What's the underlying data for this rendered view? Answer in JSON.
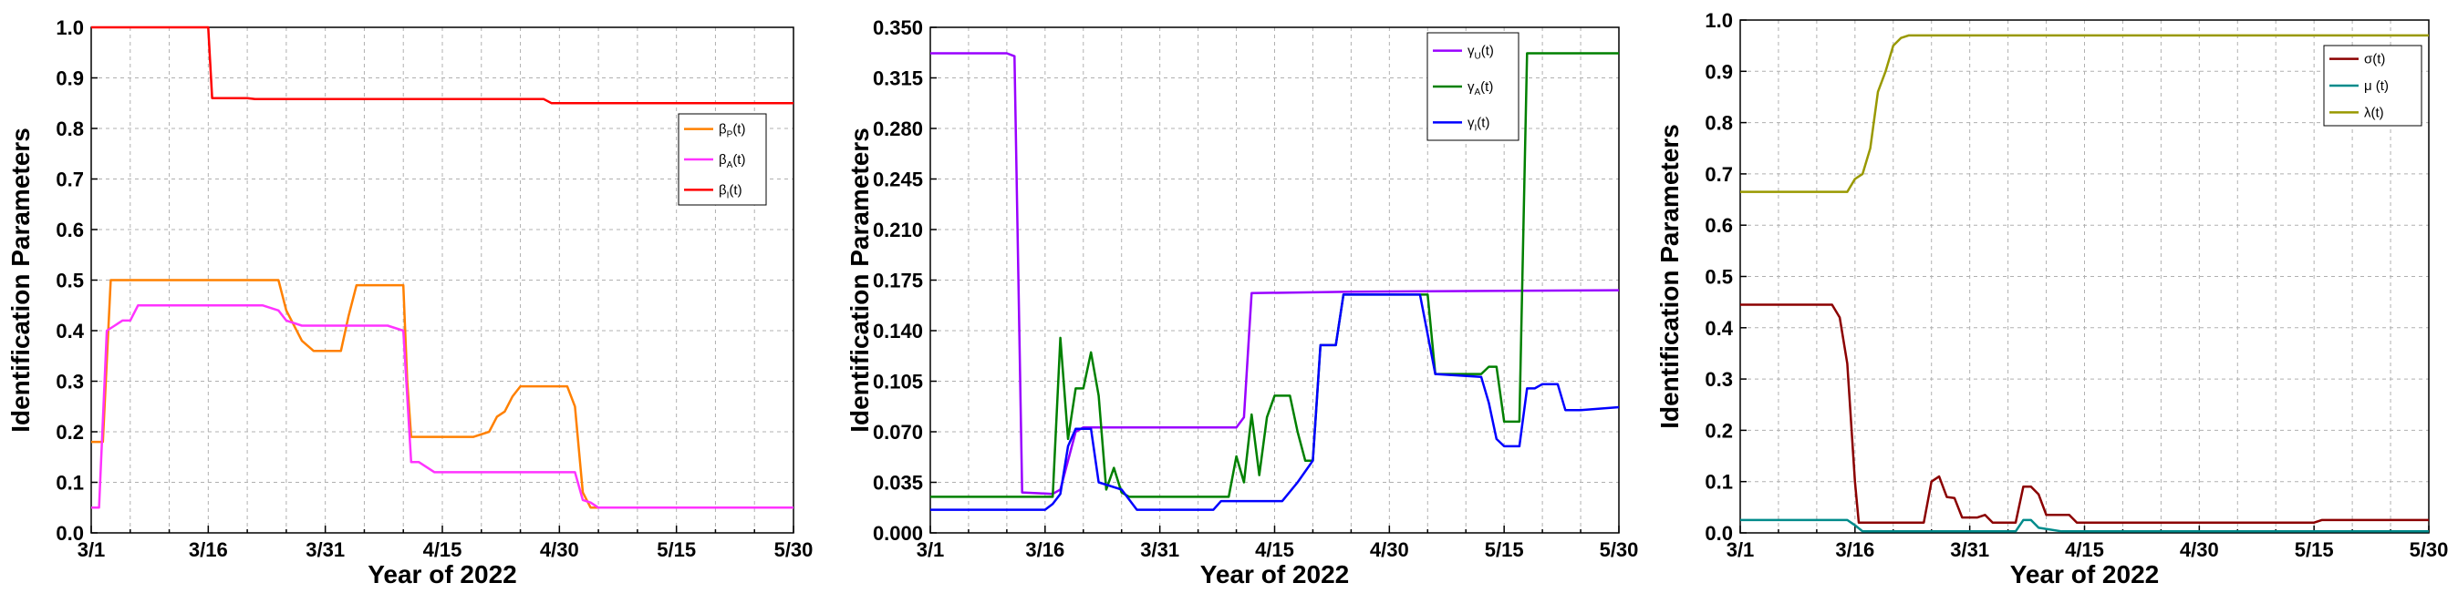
{
  "chart_data": [
    {
      "type": "line",
      "xlabel": "Year of 2022",
      "ylabel": "Identification Parameters",
      "x_unit": "day index from 3/1 (0 = 3/1, 90 = 5/30)",
      "xticks": [
        0,
        15,
        30,
        45,
        60,
        75,
        90
      ],
      "xtick_labels": [
        "3/1",
        "3/16",
        "3/31",
        "4/15",
        "4/30",
        "5/15",
        "5/30"
      ],
      "xlim": [
        0,
        90
      ],
      "ylim": [
        0.0,
        1.0
      ],
      "yticks": [
        0.0,
        0.1,
        0.2,
        0.3,
        0.4,
        0.5,
        0.6,
        0.7,
        0.8,
        0.9,
        1.0
      ],
      "ytick_labels": [
        "0.0",
        "0.1",
        "0.2",
        "0.3",
        "0.4",
        "0.5",
        "0.6",
        "0.7",
        "0.8",
        "0.9",
        "1.0"
      ],
      "grid": true,
      "legend_position": "upper-right",
      "series": [
        {
          "name": "β",
          "sub": "P",
          "suffix": "(t)",
          "color": "#ff8000",
          "points": [
            [
              0,
              0.18
            ],
            [
              1.5,
              0.18
            ],
            [
              2.5,
              0.5
            ],
            [
              24,
              0.5
            ],
            [
              25,
              0.44
            ],
            [
              27,
              0.38
            ],
            [
              28.5,
              0.36
            ],
            [
              32,
              0.36
            ],
            [
              33,
              0.43
            ],
            [
              34,
              0.49
            ],
            [
              40,
              0.49
            ],
            [
              40.5,
              0.3
            ],
            [
              41,
              0.19
            ],
            [
              49,
              0.19
            ],
            [
              51,
              0.2
            ],
            [
              52,
              0.23
            ],
            [
              53,
              0.24
            ],
            [
              54,
              0.27
            ],
            [
              55,
              0.29
            ],
            [
              61,
              0.29
            ],
            [
              62,
              0.25
            ],
            [
              63,
              0.08
            ],
            [
              64,
              0.05
            ],
            [
              90,
              0.05
            ]
          ]
        },
        {
          "name": "β",
          "sub": "A",
          "suffix": "(t)",
          "color": "#ff33ff",
          "points": [
            [
              0,
              0.05
            ],
            [
              1,
              0.05
            ],
            [
              2,
              0.4
            ],
            [
              3,
              0.41
            ],
            [
              4,
              0.42
            ],
            [
              5,
              0.42
            ],
            [
              6,
              0.45
            ],
            [
              22,
              0.45
            ],
            [
              24,
              0.44
            ],
            [
              25,
              0.42
            ],
            [
              27,
              0.41
            ],
            [
              38,
              0.41
            ],
            [
              40,
              0.4
            ],
            [
              41,
              0.14
            ],
            [
              42,
              0.14
            ],
            [
              44,
              0.12
            ],
            [
              62,
              0.12
            ],
            [
              63,
              0.065
            ],
            [
              64,
              0.06
            ],
            [
              65,
              0.05
            ],
            [
              90,
              0.05
            ]
          ]
        },
        {
          "name": "β",
          "sub": "I",
          "suffix": "(t)",
          "color": "#ff0000",
          "points": [
            [
              0,
              1.0
            ],
            [
              15,
              1.0
            ],
            [
              15.5,
              0.86
            ],
            [
              20,
              0.86
            ],
            [
              21,
              0.858
            ],
            [
              58,
              0.858
            ],
            [
              59,
              0.85
            ],
            [
              90,
              0.85
            ]
          ]
        }
      ]
    },
    {
      "type": "line",
      "xlabel": "Year of 2022",
      "ylabel": "Identification Parameters",
      "x_unit": "day index from 3/1 (0 = 3/1, 90 = 5/30)",
      "xticks": [
        0,
        15,
        30,
        45,
        60,
        75,
        90
      ],
      "xtick_labels": [
        "3/1",
        "3/16",
        "3/31",
        "4/15",
        "4/30",
        "5/15",
        "5/30"
      ],
      "xlim": [
        0,
        90
      ],
      "ylim": [
        0.0,
        0.35
      ],
      "yticks": [
        0.0,
        0.035,
        0.07,
        0.105,
        0.14,
        0.175,
        0.21,
        0.245,
        0.28,
        0.315,
        0.35
      ],
      "ytick_labels": [
        "0.000",
        "0.035",
        "0.070",
        "0.105",
        "0.140",
        "0.175",
        "0.210",
        "0.245",
        "0.280",
        "0.315",
        "0.350"
      ],
      "grid": true,
      "legend_position": "upper-right",
      "series": [
        {
          "name": "γ",
          "sub": "U",
          "suffix": "(t)",
          "color": "#9900ff",
          "points": [
            [
              0,
              0.332
            ],
            [
              10,
              0.332
            ],
            [
              11,
              0.33
            ],
            [
              12,
              0.028
            ],
            [
              16,
              0.027
            ],
            [
              17,
              0.03
            ],
            [
              18,
              0.05
            ],
            [
              19,
              0.07
            ],
            [
              20,
              0.073
            ],
            [
              40,
              0.073
            ],
            [
              41,
              0.08
            ],
            [
              42,
              0.166
            ],
            [
              55,
              0.167
            ],
            [
              90,
              0.168
            ]
          ]
        },
        {
          "name": "γ",
          "sub": "A",
          "suffix": "(t)",
          "color": "#008000",
          "points": [
            [
              0,
              0.025
            ],
            [
              16,
              0.025
            ],
            [
              17,
              0.135
            ],
            [
              18,
              0.065
            ],
            [
              19,
              0.1
            ],
            [
              20,
              0.1
            ],
            [
              21,
              0.125
            ],
            [
              22,
              0.095
            ],
            [
              23,
              0.03
            ],
            [
              24,
              0.045
            ],
            [
              25,
              0.028
            ],
            [
              26,
              0.025
            ],
            [
              39,
              0.025
            ],
            [
              40,
              0.053
            ],
            [
              41,
              0.035
            ],
            [
              42,
              0.082
            ],
            [
              43,
              0.04
            ],
            [
              44,
              0.08
            ],
            [
              45,
              0.095
            ],
            [
              47,
              0.095
            ],
            [
              48,
              0.07
            ],
            [
              49,
              0.05
            ],
            [
              50,
              0.05
            ],
            [
              51,
              0.13
            ],
            [
              53,
              0.13
            ],
            [
              54,
              0.165
            ],
            [
              65,
              0.165
            ],
            [
              66,
              0.11
            ],
            [
              72,
              0.11
            ],
            [
              73,
              0.115
            ],
            [
              74,
              0.115
            ],
            [
              75,
              0.077
            ],
            [
              77,
              0.077
            ],
            [
              78,
              0.332
            ],
            [
              90,
              0.332
            ]
          ]
        },
        {
          "name": "γ",
          "sub": "I",
          "suffix": "(t)",
          "color": "#0000ff",
          "points": [
            [
              0,
              0.016
            ],
            [
              15,
              0.016
            ],
            [
              16,
              0.02
            ],
            [
              17,
              0.027
            ],
            [
              18,
              0.06
            ],
            [
              19,
              0.072
            ],
            [
              21,
              0.072
            ],
            [
              22,
              0.035
            ],
            [
              25,
              0.03
            ],
            [
              27,
              0.016
            ],
            [
              37,
              0.016
            ],
            [
              38,
              0.022
            ],
            [
              46,
              0.022
            ],
            [
              48,
              0.035
            ],
            [
              50,
              0.05
            ],
            [
              51,
              0.13
            ],
            [
              53,
              0.13
            ],
            [
              54,
              0.165
            ],
            [
              59,
              0.165
            ],
            [
              60,
              0.165
            ],
            [
              64,
              0.165
            ],
            [
              66,
              0.11
            ],
            [
              72,
              0.108
            ],
            [
              73,
              0.09
            ],
            [
              74,
              0.065
            ],
            [
              75,
              0.06
            ],
            [
              77,
              0.06
            ],
            [
              78,
              0.1
            ],
            [
              79,
              0.1
            ],
            [
              80,
              0.103
            ],
            [
              82,
              0.103
            ],
            [
              83,
              0.085
            ],
            [
              85,
              0.085
            ],
            [
              90,
              0.087
            ]
          ]
        }
      ]
    },
    {
      "type": "line",
      "xlabel": "Year of 2022",
      "ylabel": "Identification Parameters",
      "x_unit": "day index from 3/1 (0 = 3/1, 90 = 5/30)",
      "xticks": [
        0,
        15,
        30,
        45,
        60,
        75,
        90
      ],
      "xtick_labels": [
        "3/1",
        "3/16",
        "3/31",
        "4/15",
        "4/30",
        "5/15",
        "5/30"
      ],
      "xlim": [
        0,
        90
      ],
      "ylim": [
        0.0,
        1.0
      ],
      "yticks": [
        0.0,
        0.1,
        0.2,
        0.3,
        0.4,
        0.5,
        0.6,
        0.7,
        0.8,
        0.9,
        1.0
      ],
      "ytick_labels": [
        "0.0",
        "0.1",
        "0.2",
        "0.3",
        "0.4",
        "0.5",
        "0.6",
        "0.7",
        "0.8",
        "0.9",
        "1.0"
      ],
      "grid": true,
      "legend_position": "upper-right",
      "series": [
        {
          "name": "σ(t)",
          "sub": "",
          "suffix": "",
          "color": "#8b0000",
          "points": [
            [
              0,
              0.445
            ],
            [
              12,
              0.445
            ],
            [
              13,
              0.42
            ],
            [
              14,
              0.33
            ],
            [
              15,
              0.1
            ],
            [
              15.5,
              0.02
            ],
            [
              24,
              0.02
            ],
            [
              25,
              0.1
            ],
            [
              26,
              0.11
            ],
            [
              27,
              0.07
            ],
            [
              28,
              0.068
            ],
            [
              29,
              0.03
            ],
            [
              31,
              0.03
            ],
            [
              32,
              0.035
            ],
            [
              33,
              0.02
            ],
            [
              36,
              0.02
            ],
            [
              37,
              0.09
            ],
            [
              38,
              0.09
            ],
            [
              39,
              0.075
            ],
            [
              40,
              0.035
            ],
            [
              43,
              0.035
            ],
            [
              44,
              0.02
            ],
            [
              75,
              0.02
            ],
            [
              76,
              0.025
            ],
            [
              90,
              0.025
            ]
          ]
        },
        {
          "name": "μ (t)",
          "sub": "",
          "suffix": "",
          "color": "#008b8b",
          "points": [
            [
              0,
              0.025
            ],
            [
              14,
              0.025
            ],
            [
              15,
              0.015
            ],
            [
              16,
              0.003
            ],
            [
              36,
              0.003
            ],
            [
              37,
              0.025
            ],
            [
              38,
              0.025
            ],
            [
              39,
              0.01
            ],
            [
              42,
              0.003
            ],
            [
              90,
              0.003
            ]
          ]
        },
        {
          "name": "λ(t)",
          "sub": "",
          "suffix": "",
          "color": "#999900",
          "points": [
            [
              0,
              0.665
            ],
            [
              14,
              0.665
            ],
            [
              15,
              0.69
            ],
            [
              16,
              0.7
            ],
            [
              17,
              0.75
            ],
            [
              18,
              0.86
            ],
            [
              19,
              0.9
            ],
            [
              20,
              0.95
            ],
            [
              21,
              0.965
            ],
            [
              22,
              0.97
            ],
            [
              90,
              0.97
            ]
          ]
        }
      ]
    }
  ]
}
